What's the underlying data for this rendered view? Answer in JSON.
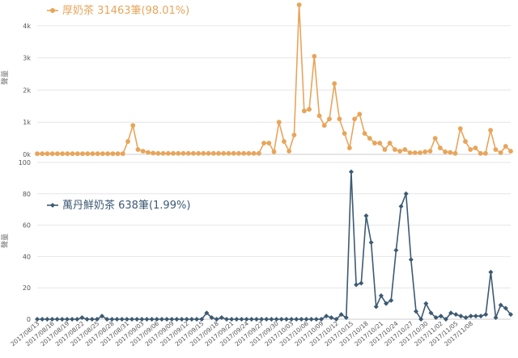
{
  "chart_data": [
    {
      "type": "line",
      "ylabel": "聲量",
      "ylim": [
        0,
        4800
      ],
      "yticks": [
        0,
        1000,
        2000,
        3000,
        4000
      ],
      "ytick_labels": [
        "0k",
        "1k",
        "2k",
        "3k",
        "4k"
      ],
      "grid": true,
      "legend": "top-left",
      "series": [
        {
          "name": "厚奶茶 31463筆(98.01%)",
          "color": "#e8a55a",
          "values": [
            20,
            20,
            20,
            20,
            20,
            20,
            20,
            20,
            20,
            20,
            20,
            20,
            20,
            20,
            20,
            20,
            20,
            20,
            400,
            900,
            150,
            100,
            60,
            40,
            30,
            30,
            30,
            30,
            30,
            30,
            30,
            30,
            30,
            30,
            30,
            30,
            30,
            30,
            30,
            30,
            30,
            30,
            30,
            30,
            30,
            350,
            350,
            80,
            1000,
            400,
            100,
            600,
            4650,
            1350,
            1400,
            3050,
            1200,
            900,
            1100,
            2200,
            1100,
            650,
            200,
            1100,
            1250,
            650,
            500,
            350,
            350,
            150,
            350,
            150,
            100,
            150,
            50,
            50,
            50,
            80,
            100,
            500,
            200,
            80,
            60,
            30,
            800,
            400,
            150,
            200,
            30,
            30,
            750,
            150,
            50,
            250,
            100
          ]
        }
      ]
    },
    {
      "type": "line",
      "ylabel": "聲量",
      "ylim": [
        0,
        100
      ],
      "yticks": [
        0,
        20,
        40,
        60,
        80,
        100
      ],
      "ytick_labels": [
        "0",
        "20",
        "40",
        "60",
        "80",
        "100"
      ],
      "grid": true,
      "legend": "top-left",
      "x_tick_labels": [
        "2017/08/13",
        "2017/08/16",
        "2017/08/19",
        "2017/08/22",
        "2017/08/25",
        "2017/08/28",
        "2017/08/31",
        "2017/09/03",
        "2017/09/06",
        "2017/09/09",
        "2017/09/12",
        "2017/09/15",
        "2017/09/18",
        "2017/09/21",
        "2017/09/24",
        "2017/09/27",
        "2017/09/30",
        "2017/10/03",
        "2017/10/06",
        "2017/10/09",
        "2017/10/12",
        "2017/10/15",
        "2017/10/18",
        "2017/10/21",
        "2017/10/24",
        "2017/10/27",
        "2017/10/30",
        "2017/11/02",
        "2017/11/05",
        "2017/11/08"
      ],
      "series": [
        {
          "name": "萬丹鮮奶茶 638筆(1.99%)",
          "color": "#3d5a73",
          "values": [
            0,
            0,
            0,
            0,
            0,
            0,
            0,
            0,
            0,
            1,
            0,
            0,
            0,
            2,
            0,
            0,
            0,
            0,
            0,
            0,
            0,
            0,
            0,
            0,
            0,
            0,
            0,
            0,
            0,
            0,
            0,
            0,
            0,
            0,
            4,
            1,
            0,
            1,
            0,
            0,
            0,
            0,
            0,
            0,
            0,
            0,
            0,
            0,
            0,
            0,
            0,
            0,
            0,
            0,
            0,
            0,
            0,
            0,
            2,
            1,
            0,
            3,
            1,
            94,
            22,
            23,
            66,
            49,
            8,
            15,
            10,
            12,
            44,
            72,
            80,
            38,
            5,
            0,
            10,
            4,
            1,
            2,
            0,
            4,
            3,
            2,
            1,
            2,
            2,
            2,
            3,
            30,
            1,
            9,
            7,
            3
          ]
        }
      ]
    }
  ]
}
